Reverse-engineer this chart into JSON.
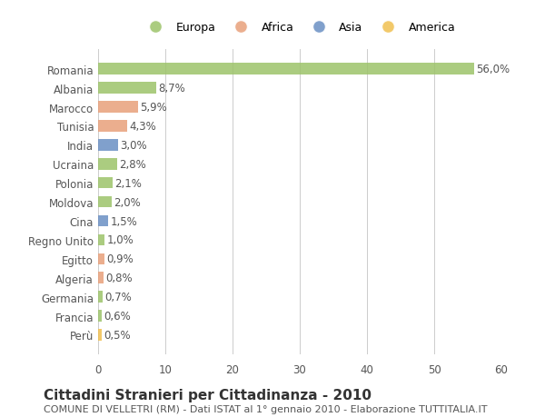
{
  "countries": [
    "Romania",
    "Albania",
    "Marocco",
    "Tunisia",
    "India",
    "Ucraina",
    "Polonia",
    "Moldova",
    "Cina",
    "Regno Unito",
    "Egitto",
    "Algeria",
    "Germania",
    "Francia",
    "Perù"
  ],
  "values": [
    56.0,
    8.7,
    5.9,
    4.3,
    3.0,
    2.8,
    2.1,
    2.0,
    1.5,
    1.0,
    0.9,
    0.8,
    0.7,
    0.6,
    0.5
  ],
  "labels": [
    "56,0%",
    "8,7%",
    "5,9%",
    "4,3%",
    "3,0%",
    "2,8%",
    "2,1%",
    "2,0%",
    "1,5%",
    "1,0%",
    "0,9%",
    "0,8%",
    "0,7%",
    "0,6%",
    "0,5%"
  ],
  "continents": [
    "Europa",
    "Europa",
    "Africa",
    "Africa",
    "Asia",
    "Europa",
    "Europa",
    "Europa",
    "Asia",
    "Europa",
    "Africa",
    "Africa",
    "Europa",
    "Europa",
    "America"
  ],
  "continent_colors": {
    "Europa": "#9dc36a",
    "Africa": "#e8a07a",
    "Asia": "#6a8fc3",
    "America": "#f0c050"
  },
  "bar_alpha": 0.85,
  "title": "Cittadini Stranieri per Cittadinanza - 2010",
  "subtitle": "COMUNE DI VELLETRI (RM) - Dati ISTAT al 1° gennaio 2010 - Elaborazione TUTTITALIA.IT",
  "xlim": [
    0,
    60
  ],
  "xticks": [
    0,
    10,
    20,
    30,
    40,
    50,
    60
  ],
  "background_color": "#ffffff",
  "grid_color": "#cccccc",
  "label_fontsize": 8.5,
  "ylabel_fontsize": 8.5,
  "title_fontsize": 11,
  "subtitle_fontsize": 8,
  "legend_order": [
    "Europa",
    "Africa",
    "Asia",
    "America"
  ]
}
